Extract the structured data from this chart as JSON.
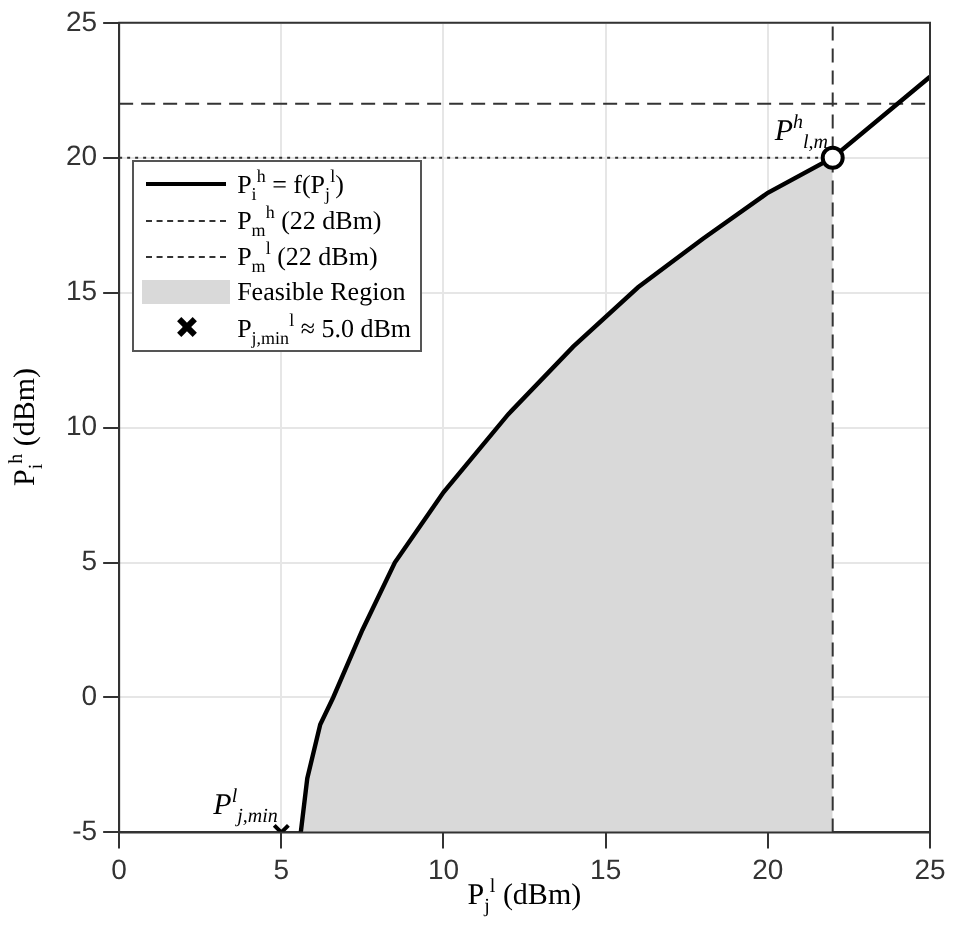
{
  "chart_data": {
    "type": "line",
    "xlabel": "P$_{j}$$^{l}$ (dBm)",
    "ylabel": "P$_{i}$$^{h}$ (dBm)",
    "xlim": [
      0,
      25
    ],
    "ylim": [
      -5,
      25
    ],
    "xticks": [
      0,
      5,
      10,
      15,
      20,
      25
    ],
    "yticks": [
      -5,
      0,
      5,
      10,
      15,
      20,
      25
    ],
    "grid": true,
    "legend": "top left",
    "series": [
      {
        "name": "P$_{i}$$^{h}$ = f(P$_{j}$$^{l}$)",
        "color": "#000000",
        "line_style": "solid",
        "marker": "none",
        "x": [
          5.6,
          5.8,
          6.2,
          6.6,
          7.5,
          8.5,
          10,
          12,
          14,
          16,
          18,
          20,
          22,
          25
        ],
        "values": [
          -5,
          -3,
          -1,
          0,
          2.5,
          5,
          7.6,
          10.5,
          13,
          15.2,
          17,
          18.7,
          20,
          23
        ]
      },
      {
        "type": "line",
        "name": "P$_{m}$$^{h}$ (22 dBm)",
        "color": "#333333",
        "line_style": "dashed",
        "marker": "none",
        "x": [
          0,
          25
        ],
        "values": [
          22,
          22
        ]
      },
      {
        "type": "line",
        "name": "P$_{m}$$^{l}$ (22 dBm)",
        "color": "#333333",
        "line_style": "dashed",
        "marker": "none",
        "x": [
          22,
          22
        ],
        "values": [
          -5,
          25
        ]
      },
      {
        "type": "area",
        "name": "Feasible Region",
        "color": "#d9d9d9",
        "x": [
          5.6,
          5.8,
          6.2,
          6.6,
          7.5,
          8.5,
          10,
          12,
          14,
          16,
          18,
          20,
          22,
          22
        ],
        "values": [
          -5,
          -3,
          -1,
          0,
          2.5,
          5,
          7.6,
          10.5,
          13,
          15.2,
          17,
          18.7,
          20,
          -5
        ]
      },
      {
        "type": "scatter",
        "name": "P$_{j,min}$$^{l}$ ≈ 5.0 dBm",
        "color": "#000000",
        "marker": "cross",
        "x": [
          5
        ],
        "values": [
          -5
        ]
      },
      {
        "type": "line",
        "color": "#333333",
        "line_style": "dotted",
        "marker": "none",
        "x": [
          0,
          22
        ],
        "values": [
          20,
          20
        ]
      },
      {
        "type": "scatter",
        "color": "#000000",
        "marker": "circle",
        "x": [
          22
        ],
        "values": [
          20
        ]
      }
    ],
    "annotations": [
      {
        "text": "P$^{h}$$_{l,m}$",
        "x": 22,
        "y": 20
      },
      {
        "text": "P$^{l}$$_{j,min}$",
        "x": 5,
        "y": -5
      }
    ]
  }
}
